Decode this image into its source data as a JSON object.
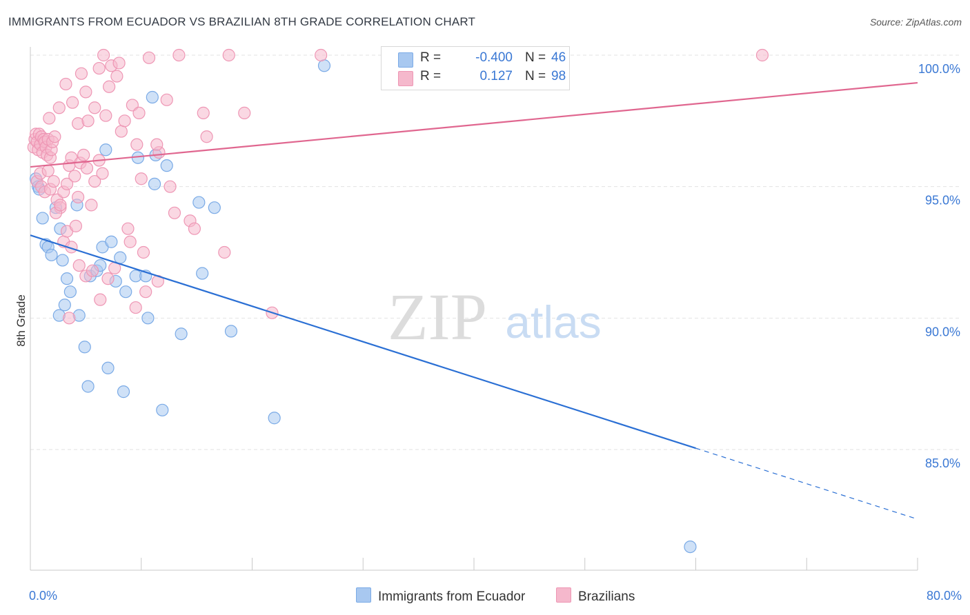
{
  "title": "IMMIGRANTS FROM ECUADOR VS BRAZILIAN 8TH GRADE CORRELATION CHART",
  "source": "Source: ZipAtlas.com",
  "watermark": {
    "zip": "ZIP",
    "atlas": "atlas"
  },
  "colors": {
    "blue_fill": "#a8c8f0",
    "blue_stroke": "#7aaae6",
    "blue_line": "#2a6fd4",
    "pink_fill": "#f5b8cc",
    "pink_stroke": "#ee96b4",
    "pink_line": "#e0668f",
    "accent_text": "#3a78d4",
    "grid": "#e2e2e2"
  },
  "legend": {
    "rows": [
      {
        "r_label": "R =",
        "r_value": "-0.400",
        "n_label": "N =",
        "n_value": "46"
      },
      {
        "r_label": "R =",
        "r_value": "0.127",
        "n_label": "N =",
        "n_value": "98"
      }
    ]
  },
  "bottom_legend": {
    "series1": "Immigrants from Ecuador",
    "series2": "Brazilians"
  },
  "chart_data": {
    "type": "scatter",
    "xlabel": "",
    "ylabel": "8th Grade",
    "xlim": [
      0,
      80
    ],
    "ylim": [
      80.5,
      101.0
    ],
    "x_tick_labels": [
      "0.0%",
      "80.0%"
    ],
    "y_ticks": [
      85,
      90,
      95,
      100
    ],
    "y_tick_labels": [
      "85.0%",
      "90.0%",
      "95.0%",
      "100.0%"
    ],
    "grid": true,
    "series": [
      {
        "name": "Immigrants from Ecuador",
        "color": "#a8c8f0",
        "points": [
          [
            0.5,
            95.3
          ],
          [
            0.7,
            95.0
          ],
          [
            0.8,
            94.9
          ],
          [
            1.1,
            93.8
          ],
          [
            1.4,
            92.8
          ],
          [
            1.6,
            92.7
          ],
          [
            1.9,
            92.4
          ],
          [
            2.3,
            94.2
          ],
          [
            2.7,
            93.4
          ],
          [
            2.9,
            92.2
          ],
          [
            3.3,
            91.5
          ],
          [
            3.6,
            91.0
          ],
          [
            3.1,
            90.5
          ],
          [
            2.6,
            90.1
          ],
          [
            4.4,
            90.1
          ],
          [
            4.2,
            94.3
          ],
          [
            5.4,
            91.6
          ],
          [
            6.0,
            91.8
          ],
          [
            6.3,
            92.0
          ],
          [
            6.5,
            92.7
          ],
          [
            6.8,
            96.4
          ],
          [
            7.3,
            92.9
          ],
          [
            7.7,
            91.4
          ],
          [
            8.1,
            92.3
          ],
          [
            8.6,
            91.0
          ],
          [
            9.5,
            91.6
          ],
          [
            9.7,
            96.1
          ],
          [
            10.4,
            91.6
          ],
          [
            10.6,
            90.0
          ],
          [
            11.0,
            98.4
          ],
          [
            11.2,
            95.1
          ],
          [
            11.3,
            96.2
          ],
          [
            12.3,
            95.8
          ],
          [
            13.6,
            89.4
          ],
          [
            15.2,
            94.4
          ],
          [
            15.5,
            91.7
          ],
          [
            16.6,
            94.2
          ],
          [
            18.1,
            89.5
          ],
          [
            7.0,
            88.1
          ],
          [
            5.2,
            87.4
          ],
          [
            8.4,
            87.2
          ],
          [
            4.9,
            88.9
          ],
          [
            11.9,
            86.5
          ],
          [
            22.0,
            86.2
          ],
          [
            26.5,
            99.6
          ],
          [
            59.5,
            81.3
          ]
        ]
      },
      {
        "name": "Brazilians",
        "color": "#f5b8cc",
        "points": [
          [
            0.3,
            96.5
          ],
          [
            0.4,
            96.8
          ],
          [
            0.5,
            97.0
          ],
          [
            0.6,
            96.7
          ],
          [
            0.7,
            96.4
          ],
          [
            0.8,
            97.0
          ],
          [
            0.9,
            96.6
          ],
          [
            1.0,
            96.9
          ],
          [
            1.1,
            96.3
          ],
          [
            1.2,
            96.8
          ],
          [
            1.3,
            96.7
          ],
          [
            1.4,
            96.5
          ],
          [
            1.5,
            96.2
          ],
          [
            1.6,
            96.8
          ],
          [
            1.8,
            96.1
          ],
          [
            1.9,
            96.4
          ],
          [
            2.0,
            96.7
          ],
          [
            2.2,
            96.9
          ],
          [
            0.6,
            95.2
          ],
          [
            0.9,
            95.5
          ],
          [
            1.0,
            95.0
          ],
          [
            1.3,
            94.8
          ],
          [
            1.6,
            95.6
          ],
          [
            1.8,
            94.9
          ],
          [
            2.1,
            95.2
          ],
          [
            2.4,
            94.5
          ],
          [
            2.7,
            94.2
          ],
          [
            3.0,
            94.8
          ],
          [
            3.3,
            95.1
          ],
          [
            3.5,
            95.8
          ],
          [
            3.7,
            96.1
          ],
          [
            4.0,
            95.4
          ],
          [
            4.3,
            94.6
          ],
          [
            4.5,
            95.9
          ],
          [
            4.8,
            96.2
          ],
          [
            5.1,
            95.7
          ],
          [
            5.5,
            94.3
          ],
          [
            5.8,
            95.2
          ],
          [
            6.2,
            96.0
          ],
          [
            6.5,
            95.5
          ],
          [
            2.3,
            94.0
          ],
          [
            2.7,
            94.3
          ],
          [
            3.0,
            92.9
          ],
          [
            3.3,
            93.3
          ],
          [
            3.7,
            92.7
          ],
          [
            4.1,
            93.5
          ],
          [
            4.4,
            92.0
          ],
          [
            5.0,
            91.6
          ],
          [
            5.6,
            91.8
          ],
          [
            6.3,
            90.7
          ],
          [
            7.0,
            91.5
          ],
          [
            3.5,
            90.0
          ],
          [
            7.6,
            91.9
          ],
          [
            8.8,
            93.4
          ],
          [
            9.0,
            92.9
          ],
          [
            9.5,
            90.4
          ],
          [
            10.2,
            92.5
          ],
          [
            10.4,
            91.0
          ],
          [
            11.5,
            91.4
          ],
          [
            13.0,
            94.0
          ],
          [
            14.4,
            93.7
          ],
          [
            17.5,
            92.5
          ],
          [
            1.7,
            97.6
          ],
          [
            2.6,
            98.0
          ],
          [
            3.2,
            98.9
          ],
          [
            3.8,
            98.2
          ],
          [
            4.3,
            97.4
          ],
          [
            4.6,
            99.3
          ],
          [
            5.0,
            98.6
          ],
          [
            5.2,
            97.5
          ],
          [
            5.8,
            98.0
          ],
          [
            6.2,
            99.5
          ],
          [
            6.8,
            97.7
          ],
          [
            7.1,
            98.8
          ],
          [
            7.3,
            99.6
          ],
          [
            7.8,
            99.2
          ],
          [
            8.2,
            97.1
          ],
          [
            8.5,
            97.5
          ],
          [
            9.2,
            98.1
          ],
          [
            9.6,
            96.6
          ],
          [
            10.0,
            95.3
          ],
          [
            10.7,
            99.9
          ],
          [
            11.6,
            96.3
          ],
          [
            12.3,
            98.3
          ],
          [
            12.6,
            95.0
          ],
          [
            13.4,
            100.0
          ],
          [
            14.8,
            93.4
          ],
          [
            15.6,
            97.8
          ],
          [
            15.9,
            96.9
          ],
          [
            17.9,
            100.0
          ],
          [
            19.3,
            97.8
          ],
          [
            21.8,
            90.2
          ],
          [
            26.2,
            100.0
          ],
          [
            66.0,
            100.0
          ],
          [
            6.6,
            100.0
          ],
          [
            9.8,
            97.8
          ],
          [
            11.4,
            96.6
          ],
          [
            8.0,
            99.7
          ]
        ]
      }
    ],
    "trend_lines": [
      {
        "series": "Immigrants from Ecuador",
        "x_start": 0,
        "y_start": 93.15,
        "x_end": 60,
        "y_end": 85.05,
        "dashed_to_x": 80,
        "dashed_to_y": 82.35
      },
      {
        "series": "Brazilians",
        "x_start": 0,
        "y_start": 95.75,
        "x_end": 80,
        "y_end": 98.95
      }
    ]
  }
}
